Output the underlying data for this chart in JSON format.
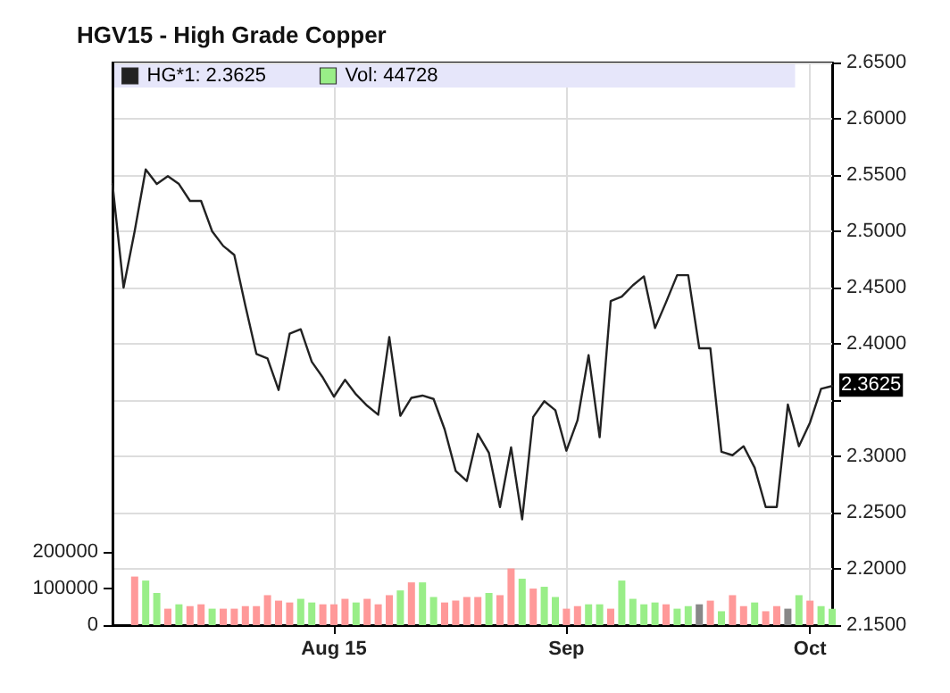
{
  "chart_data": {
    "type": "line",
    "title": "HGV15 - High Grade Copper",
    "categories": [
      null,
      null,
      null,
      null,
      null,
      null,
      null,
      null,
      null,
      null,
      null,
      null,
      null,
      null,
      null,
      null,
      null,
      null,
      null,
      null,
      "Aug 15",
      null,
      null,
      null,
      null,
      null,
      null,
      null,
      null,
      null,
      null,
      null,
      null,
      null,
      null,
      null,
      null,
      null,
      null,
      null,
      null,
      "Sep",
      null,
      null,
      null,
      null,
      null,
      null,
      null,
      null,
      null,
      null,
      null,
      null,
      null,
      null,
      null,
      null,
      null,
      null,
      null,
      null,
      null,
      "Oct",
      null,
      null
    ],
    "series": [
      {
        "name": "HG*1: 2.3625",
        "color": "#222222",
        "values": [
          2.542,
          2.45,
          2.5,
          2.555,
          2.542,
          2.549,
          2.542,
          2.527,
          2.527,
          2.5,
          2.487,
          2.479,
          2.434,
          2.391,
          2.387,
          2.359,
          2.409,
          2.413,
          2.384,
          2.37,
          2.353,
          2.368,
          2.355,
          2.345,
          2.337,
          2.406,
          2.336,
          2.352,
          2.354,
          2.351,
          2.324,
          2.287,
          2.278,
          2.32,
          2.303,
          2.255,
          2.308,
          2.244,
          2.335,
          2.349,
          2.341,
          2.305,
          2.332,
          2.39,
          2.317,
          2.438,
          2.442,
          2.452,
          2.46,
          2.414,
          2.437,
          2.461,
          2.461,
          2.396,
          2.396,
          2.304,
          2.301,
          2.309,
          2.29,
          2.255,
          2.255,
          2.346,
          2.309,
          2.33,
          2.36,
          2.3625
        ]
      },
      {
        "name": "Vol: 44728",
        "type": "bar",
        "axis": "y2",
        "color": "#99ee88",
        "values": [
          null,
          null,
          133000,
          122000,
          88000,
          45000,
          57000,
          52000,
          57000,
          45000,
          45000,
          45000,
          52000,
          52000,
          82000,
          67000,
          62000,
          72000,
          62000,
          57000,
          57000,
          72000,
          62000,
          72000,
          57000,
          82000,
          95000,
          117000,
          117000,
          77000,
          62000,
          67000,
          77000,
          77000,
          88000,
          82000,
          155000,
          127000,
          100000,
          105000,
          77000,
          45000,
          52000,
          57000,
          57000,
          45000,
          122000,
          72000,
          57000,
          62000,
          57000,
          45000,
          52000,
          57000,
          67000,
          38000,
          82000,
          52000,
          62000,
          38000,
          52000,
          45000,
          82000,
          67000,
          52000,
          44728
        ],
        "colors": [
          null,
          null,
          "#ff9999",
          "#99ee88",
          "#99ee88",
          "#ff9999",
          "#99ee88",
          "#ff9999",
          "#ff9999",
          "#99ee88",
          "#ff9999",
          "#ff9999",
          "#ff9999",
          "#ff9999",
          "#ff9999",
          "#ff9999",
          "#ff9999",
          "#99ee88",
          "#99ee88",
          "#ff9999",
          "#ff9999",
          "#ff9999",
          "#99ee88",
          "#ff9999",
          "#ff9999",
          "#ff9999",
          "#99ee88",
          "#ff9999",
          "#99ee88",
          "#99ee88",
          "#ff9999",
          "#ff9999",
          "#ff9999",
          "#ff9999",
          "#99ee88",
          "#ff9999",
          "#ff9999",
          "#99ee88",
          "#ff9999",
          "#99ee88",
          "#99ee88",
          "#ff9999",
          "#ff9999",
          "#99ee88",
          "#99ee88",
          "#ff9999",
          "#99ee88",
          "#99ee88",
          "#99ee88",
          "#99ee88",
          "#ff9999",
          "#99ee88",
          "#99ee88",
          "#888888",
          "#ff9999",
          "#99ee88",
          "#ff9999",
          "#ff9999",
          "#99ee88",
          "#ff9999",
          "#ff9999",
          "#888888",
          "#99ee88",
          "#ff9999",
          "#99ee88",
          "#99ee88"
        ]
      }
    ],
    "ylim": [
      2.15,
      2.65
    ],
    "yticks": [
      {
        "value": 2.15,
        "label": "2.1500"
      },
      {
        "value": 2.2,
        "label": "2.2000"
      },
      {
        "value": 2.25,
        "label": "2.2500"
      },
      {
        "value": 2.3,
        "label": "2.3000"
      },
      {
        "value": 2.35,
        "label": null
      },
      {
        "value": 2.4,
        "label": "2.4000"
      },
      {
        "value": 2.45,
        "label": "2.4500"
      },
      {
        "value": 2.5,
        "label": "2.5000"
      },
      {
        "value": 2.55,
        "label": "2.5500"
      },
      {
        "value": 2.6,
        "label": "2.6000"
      },
      {
        "value": 2.65,
        "label": "2.6500"
      }
    ],
    "y2lim": [
      0,
      1540000
    ],
    "y2ticks": [
      0,
      100000,
      200000
    ],
    "annotations": [
      "2.3625"
    ],
    "grid": true,
    "legend": "top left",
    "marker": "none",
    "line_style": "solid"
  }
}
